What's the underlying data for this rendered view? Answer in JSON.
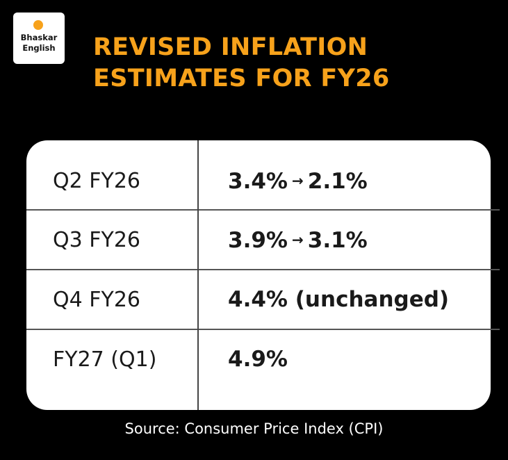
{
  "logo": {
    "line1": "Bhaskar",
    "line2": "English"
  },
  "title": {
    "line1": "REVISED INFLATION",
    "line2": "ESTIMATES FOR FY26"
  },
  "table": {
    "rows": [
      {
        "period": "Q2 FY26",
        "from": "3.4%",
        "arrow": "→",
        "to": "2.1%"
      },
      {
        "period": "Q3 FY26",
        "from": "3.9%",
        "arrow": "→",
        "to": "3.1%"
      },
      {
        "period": "Q4 FY26",
        "value": "4.4% (unchanged)"
      },
      {
        "period": "FY27 (Q1)",
        "value": "4.9%"
      }
    ]
  },
  "source": "Source: Consumer Price Index (CPI)",
  "colors": {
    "background": "#000000",
    "accent": "#f7a21b",
    "card": "#ffffff",
    "text": "#1a1a1a"
  }
}
